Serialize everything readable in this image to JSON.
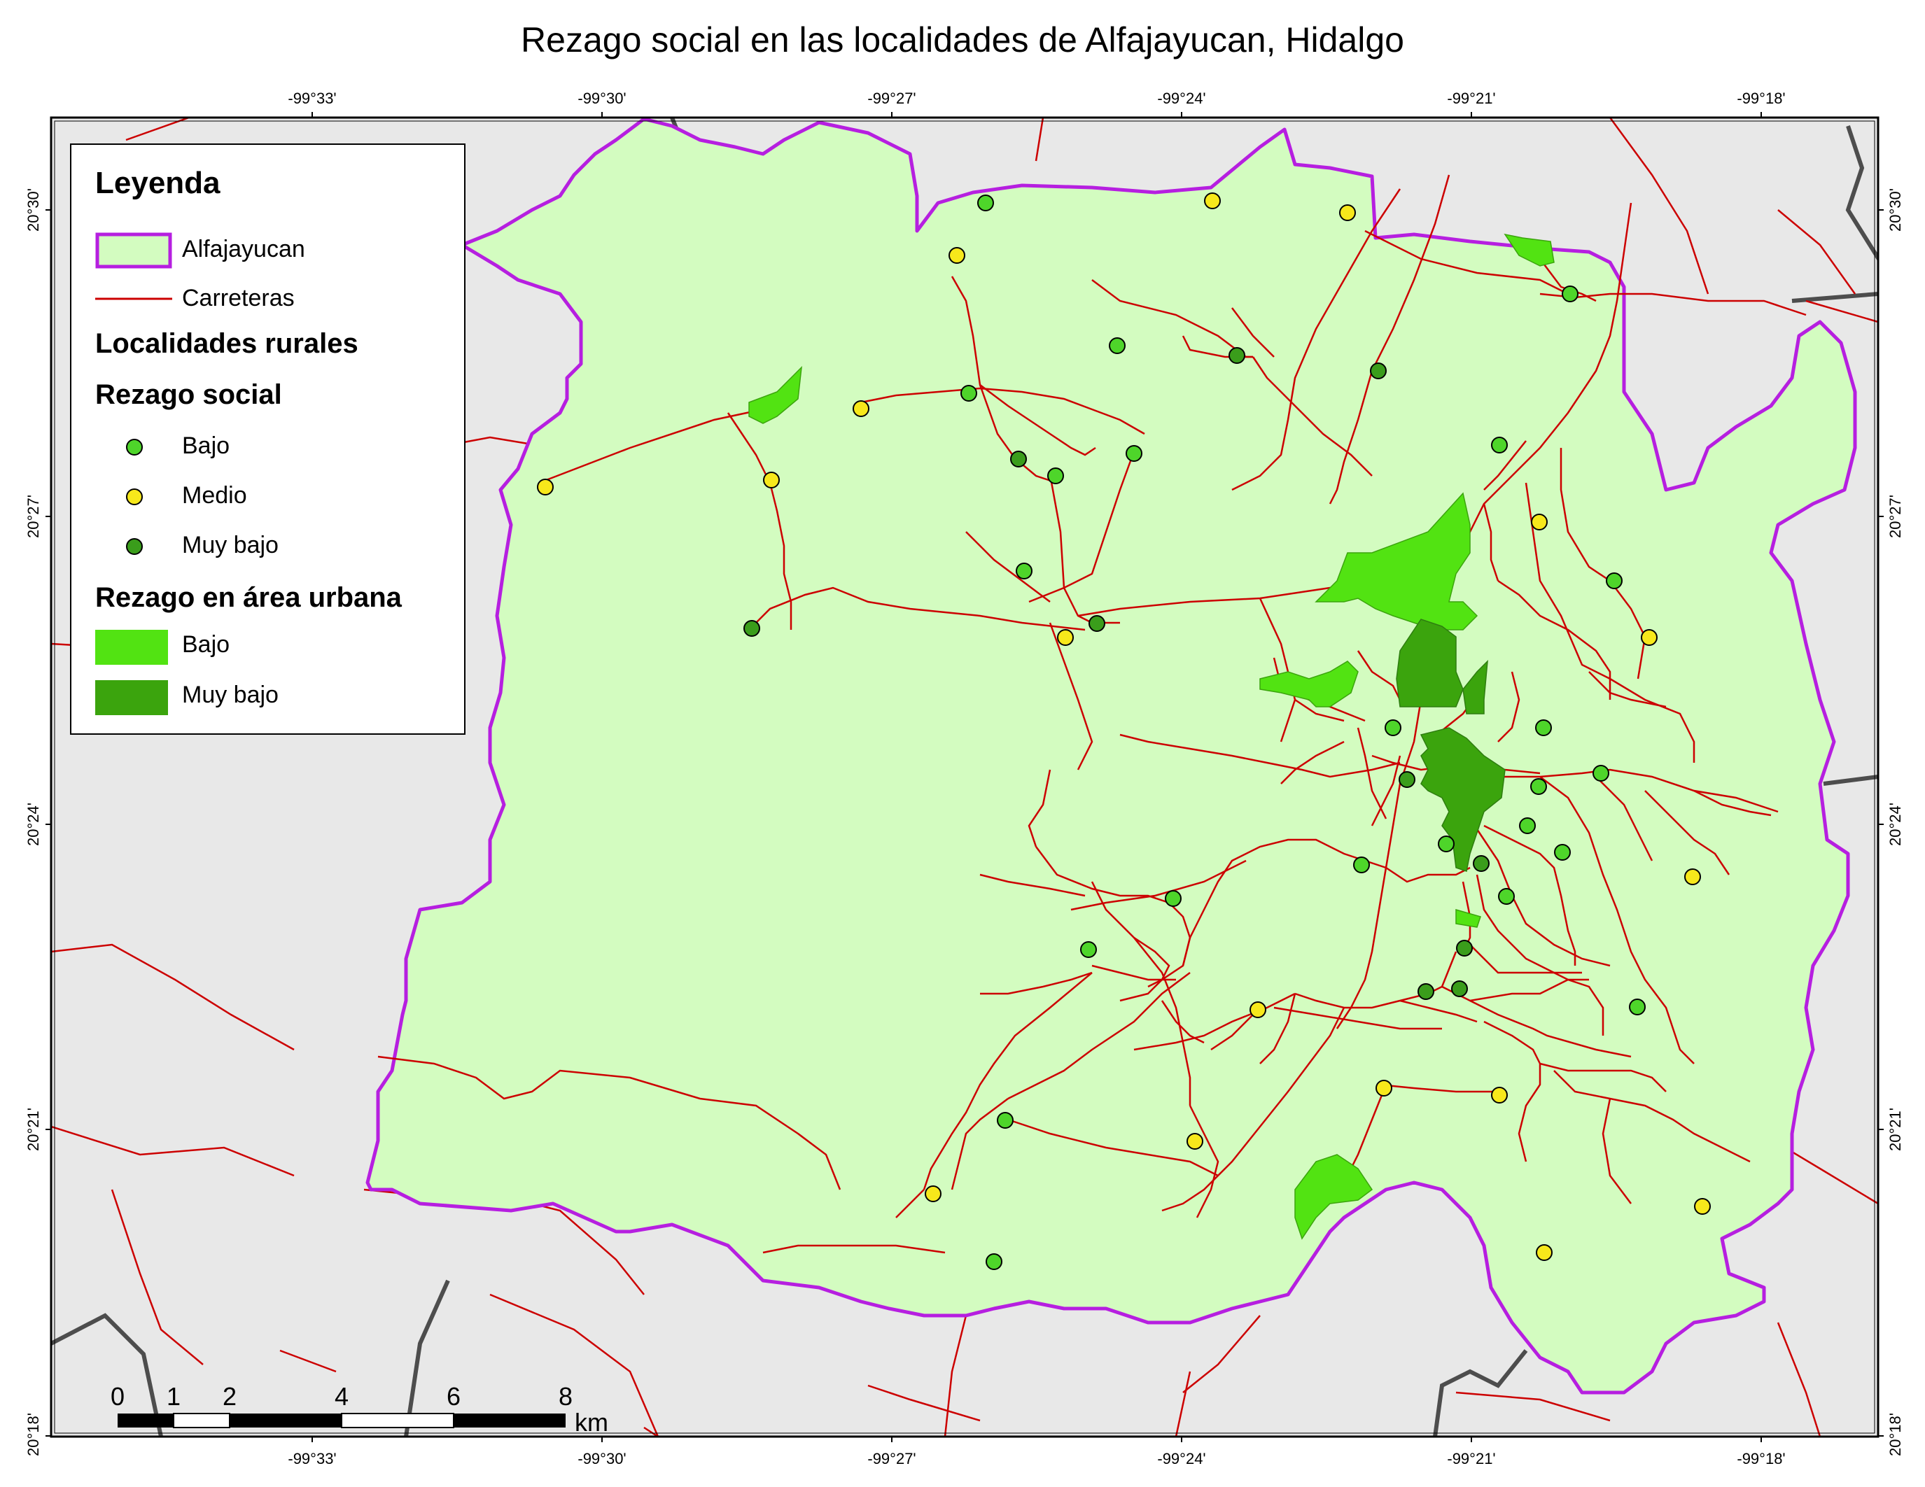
{
  "title": "Rezago social en las localidades de Alfajayucan, Hidalgo",
  "axes": {
    "longitude_ticks": [
      "-99°33'",
      "-99°30'",
      "-99°27'",
      "-99°24'",
      "-99°21'",
      "-99°18'"
    ],
    "latitude_ticks": [
      "20°30'",
      "20°27'",
      "20°24'",
      "20°21'",
      "20°18'"
    ]
  },
  "legend": {
    "title": "Leyenda",
    "boundary_label": "Alfajayucan",
    "roads_label": "Carreteras",
    "rural_heading": "Localidades rurales",
    "social_heading": "Rezago social",
    "rural_classes": [
      "Bajo",
      "Medio",
      "Muy bajo"
    ],
    "urban_heading": "Rezago en área urbana",
    "urban_classes": [
      "Bajo",
      "Muy bajo"
    ]
  },
  "scale_bar": {
    "labels": [
      "0",
      "1",
      "2",
      "4",
      "6",
      "8"
    ],
    "unit": "km"
  },
  "colors": {
    "municipality_fill": "#d3fcc0",
    "municipality_border": "#b61fe0",
    "outside": "#e8e8e8",
    "roads": "#cc0000",
    "state_border": "#4d4d4d",
    "bajo": "#4ed52a",
    "medio": "#f7e81b",
    "muy_bajo": "#3a9d1b",
    "urban_bajo": "#52e312",
    "urban_muy_bajo": "#3ba40d"
  },
  "localities": {
    "bajo": 23,
    "medio": 14,
    "muy_bajo": 12
  }
}
